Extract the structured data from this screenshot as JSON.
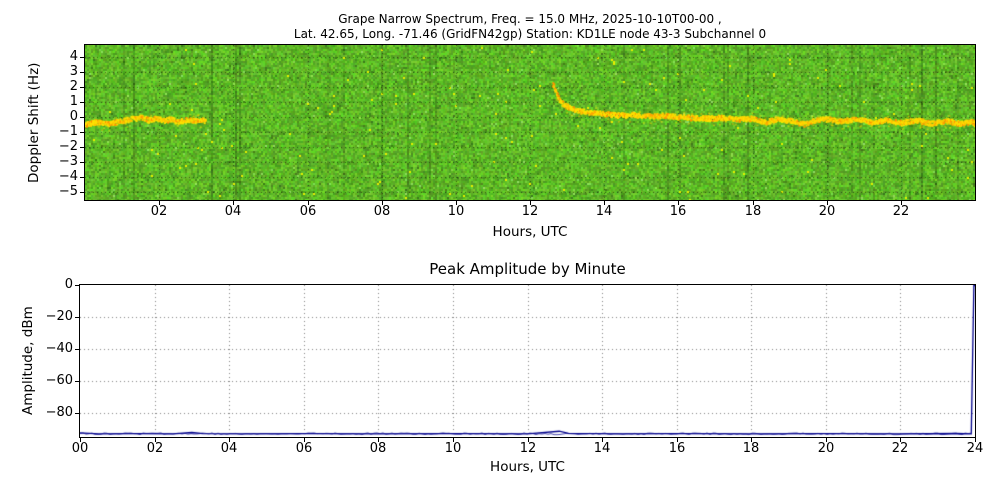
{
  "figure": {
    "background": "#ffffff"
  },
  "chart_data": [
    {
      "type": "heatmap",
      "title_line1": "Grape Narrow Spectrum, Freq. = 15.0 MHz, 2025-10-10T00-00 ,",
      "title_line2": "Lat.  42.65, Long. -71.46 (GridFN42gp) Station: KD1LE node 43-3 Subchannel 0",
      "xlabel": "Hours, UTC",
      "ylabel": "Doppler Shift (Hz)",
      "xlim": [
        0,
        24
      ],
      "ylim": [
        -5.5,
        4.8
      ],
      "xtick_values": [
        2,
        4,
        6,
        8,
        10,
        12,
        14,
        16,
        18,
        20,
        22
      ],
      "xtick_labels": [
        "02",
        "04",
        "06",
        "08",
        "10",
        "12",
        "14",
        "16",
        "18",
        "20",
        "22"
      ],
      "ytick_values": [
        4,
        3,
        2,
        1,
        0,
        -1,
        -2,
        -3,
        -4,
        -5
      ],
      "ytick_labels": [
        "4",
        "3",
        "2",
        "1",
        "0",
        "−1",
        "−2",
        "−3",
        "−4",
        "−5"
      ],
      "grid": true,
      "legend": "none",
      "colormap_background": "#5ab42b",
      "noise_colors": {
        "speck": "#e8ef00"
      },
      "trace_colors": [
        "#ffe000",
        "#ffc400",
        "#ff9000"
      ],
      "trace_label": "carrier doppler shift trace (Hz vs hour)",
      "trace_segments": [
        {
          "points": [
            [
              0,
              -0.5
            ],
            [
              0.3,
              -0.35
            ],
            [
              0.6,
              -0.45
            ],
            [
              0.9,
              -0.3
            ],
            [
              1.2,
              -0.15
            ],
            [
              1.5,
              -0.05
            ],
            [
              1.7,
              -0.2
            ],
            [
              1.9,
              -0.1
            ],
            [
              2.1,
              -0.25
            ],
            [
              2.3,
              -0.15
            ],
            [
              2.5,
              -0.3
            ],
            [
              2.7,
              -0.2
            ],
            [
              2.9,
              -0.25
            ],
            [
              3.1,
              -0.2
            ],
            [
              3.25,
              -0.35
            ]
          ]
        },
        {
          "points": [
            [
              12.6,
              2.2
            ],
            [
              12.7,
              1.6
            ],
            [
              12.8,
              1.0
            ],
            [
              12.95,
              0.75
            ],
            [
              13.1,
              0.55
            ],
            [
              13.3,
              0.4
            ],
            [
              13.6,
              0.3
            ],
            [
              14.0,
              0.2
            ],
            [
              14.4,
              0.1
            ],
            [
              14.8,
              0.15
            ],
            [
              15.2,
              0.05
            ],
            [
              15.6,
              0.1
            ],
            [
              16.0,
              0.0
            ],
            [
              16.4,
              -0.05
            ],
            [
              16.8,
              -0.1
            ],
            [
              17.2,
              -0.05
            ],
            [
              17.6,
              -0.15
            ],
            [
              18.0,
              -0.1
            ],
            [
              18.3,
              -0.35
            ],
            [
              18.6,
              -0.15
            ],
            [
              19.0,
              -0.25
            ],
            [
              19.4,
              -0.5
            ],
            [
              19.7,
              -0.2
            ],
            [
              20.0,
              -0.15
            ],
            [
              20.4,
              -0.3
            ],
            [
              20.8,
              -0.1
            ],
            [
              21.2,
              -0.35
            ],
            [
              21.6,
              -0.2
            ],
            [
              22.0,
              -0.4
            ],
            [
              22.4,
              -0.2
            ],
            [
              22.8,
              -0.45
            ],
            [
              23.2,
              -0.25
            ],
            [
              23.6,
              -0.45
            ],
            [
              23.9,
              -0.3
            ],
            [
              24,
              -0.55
            ]
          ]
        }
      ]
    },
    {
      "type": "line",
      "title": "Peak Amplitude by Minute",
      "xlabel": "Hours, UTC",
      "ylabel": "Amplitude, dBm",
      "xlim": [
        0,
        24
      ],
      "ylim": [
        -95,
        0
      ],
      "xtick_values": [
        0,
        2,
        4,
        6,
        8,
        10,
        12,
        14,
        16,
        18,
        20,
        22,
        24
      ],
      "xtick_labels": [
        "00",
        "02",
        "04",
        "06",
        "08",
        "10",
        "12",
        "14",
        "16",
        "18",
        "20",
        "22",
        "24"
      ],
      "ytick_values": [
        0,
        -20,
        -40,
        -60,
        -80
      ],
      "ytick_labels": [
        "0",
        "−20",
        "−40",
        "−60",
        "−80"
      ],
      "grid": true,
      "legend": "none",
      "line_color": "#00008b",
      "baseline_dbm": -93,
      "series": [
        {
          "name": "peak amplitude by minute",
          "points": [
            [
              0,
              -92.4
            ],
            [
              0.5,
              -93.0
            ],
            [
              1.5,
              -92.9
            ],
            [
              2.5,
              -93.0
            ],
            [
              3.0,
              -92.2
            ],
            [
              3.3,
              -92.9
            ],
            [
              4.5,
              -93.0
            ],
            [
              6.0,
              -92.9
            ],
            [
              8.0,
              -93.0
            ],
            [
              10.0,
              -92.9
            ],
            [
              12.0,
              -93.0
            ],
            [
              12.85,
              -91.4
            ],
            [
              13.1,
              -92.7
            ],
            [
              14.5,
              -93.0
            ],
            [
              16.0,
              -92.9
            ],
            [
              18.0,
              -93.0
            ],
            [
              20.0,
              -92.9
            ],
            [
              22.0,
              -93.0
            ],
            [
              23.5,
              -92.8
            ],
            [
              23.9,
              -93.0
            ],
            [
              23.97,
              -0.3
            ],
            [
              24,
              -0.3
            ]
          ]
        }
      ]
    }
  ]
}
